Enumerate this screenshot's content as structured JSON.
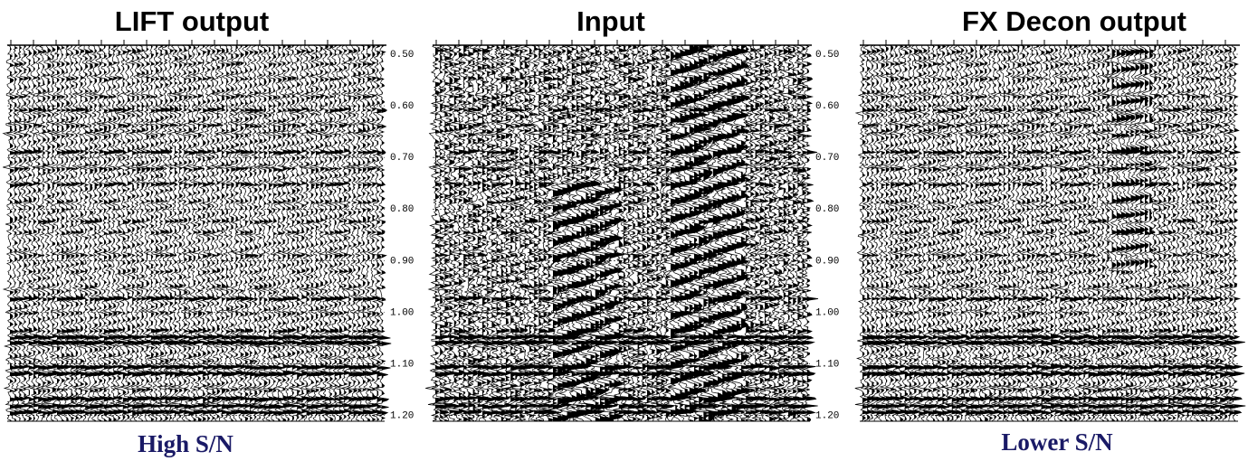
{
  "panels": [
    {
      "title": "LIFT output",
      "time_labels": [
        "0.50",
        "0.60",
        "0.70",
        "0.80",
        "0.90",
        "1.00",
        "1.10",
        "1.20"
      ],
      "caption": "High S/N"
    },
    {
      "title": "Input",
      "time_labels": [
        "0.50",
        "0.60",
        "0.70",
        "0.80",
        "0.90",
        "1.00",
        "1.10",
        "1.20"
      ]
    },
    {
      "title": "FX Decon output",
      "caption": "Lower S/N"
    }
  ]
}
